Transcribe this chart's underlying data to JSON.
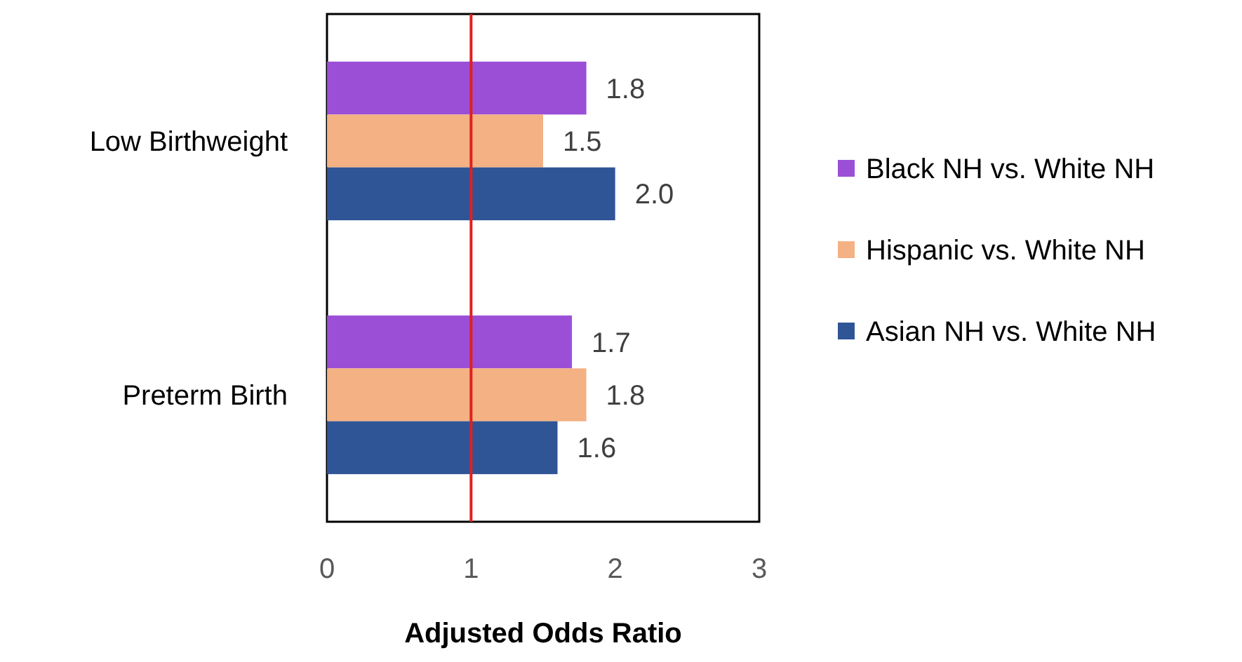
{
  "chart_data": {
    "type": "bar",
    "orientation": "horizontal",
    "xlabel": "Adjusted Odds Ratio",
    "categories": [
      "Low Birthweight",
      "Preterm Birth"
    ],
    "series": [
      {
        "name": "Black NH vs. White NH",
        "color": "#9b4fd6",
        "values": [
          1.8,
          1.7
        ],
        "value_labels": [
          "1.8",
          "1.7"
        ]
      },
      {
        "name": "Hispanic vs. White NH",
        "color": "#f4b183",
        "values": [
          1.5,
          1.8
        ],
        "value_labels": [
          "1.5",
          "1.8"
        ]
      },
      {
        "name": "Asian NH vs. White NH",
        "color": "#2f5597",
        "values": [
          2.0,
          1.6
        ],
        "value_labels": [
          "2.0",
          "1.6"
        ]
      }
    ],
    "xlim": [
      0,
      3
    ],
    "xticks": [
      0,
      1,
      2,
      3
    ],
    "grid": false,
    "legend": "right",
    "ref_lines": [
      {
        "axis": "x",
        "value": 1,
        "color": "#e02020"
      }
    ]
  }
}
